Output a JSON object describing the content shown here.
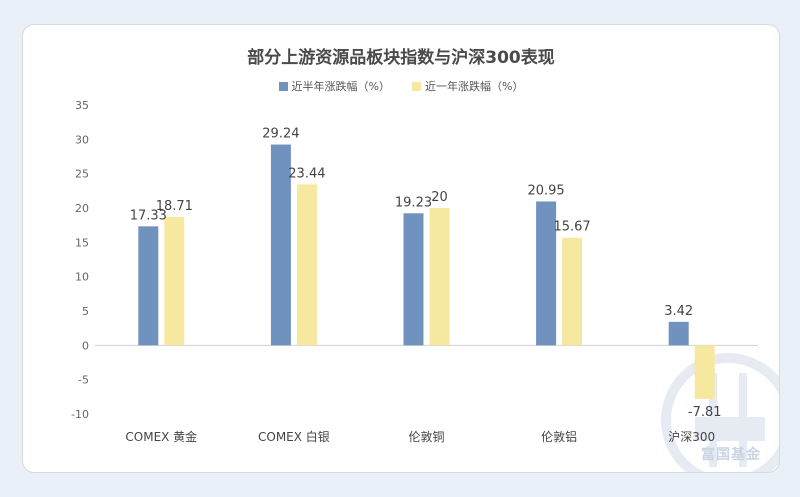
{
  "chart_data": {
    "type": "bar",
    "title": "部分上游资源品板块指数与沪深300表现",
    "categories": [
      "COMEX 黄金",
      "COMEX 白银",
      "伦敦铜",
      "伦敦铝",
      "沪深300"
    ],
    "series": [
      {
        "name": "近半年涨跌幅（%）",
        "values": [
          17.33,
          29.24,
          19.23,
          20.95,
          3.42
        ],
        "color": "#7092be"
      },
      {
        "name": "近一年涨跌幅（%）",
        "values": [
          18.71,
          23.44,
          20,
          15.67,
          -7.81
        ],
        "color": "#f7e8a0"
      }
    ],
    "ylim": [
      -10,
      35
    ],
    "yticks": [
      -10,
      -5,
      0,
      5,
      10,
      15,
      20,
      25,
      30,
      35
    ],
    "grid": false,
    "legend_position": "top-center"
  },
  "watermark": {
    "text": "富国基金"
  }
}
